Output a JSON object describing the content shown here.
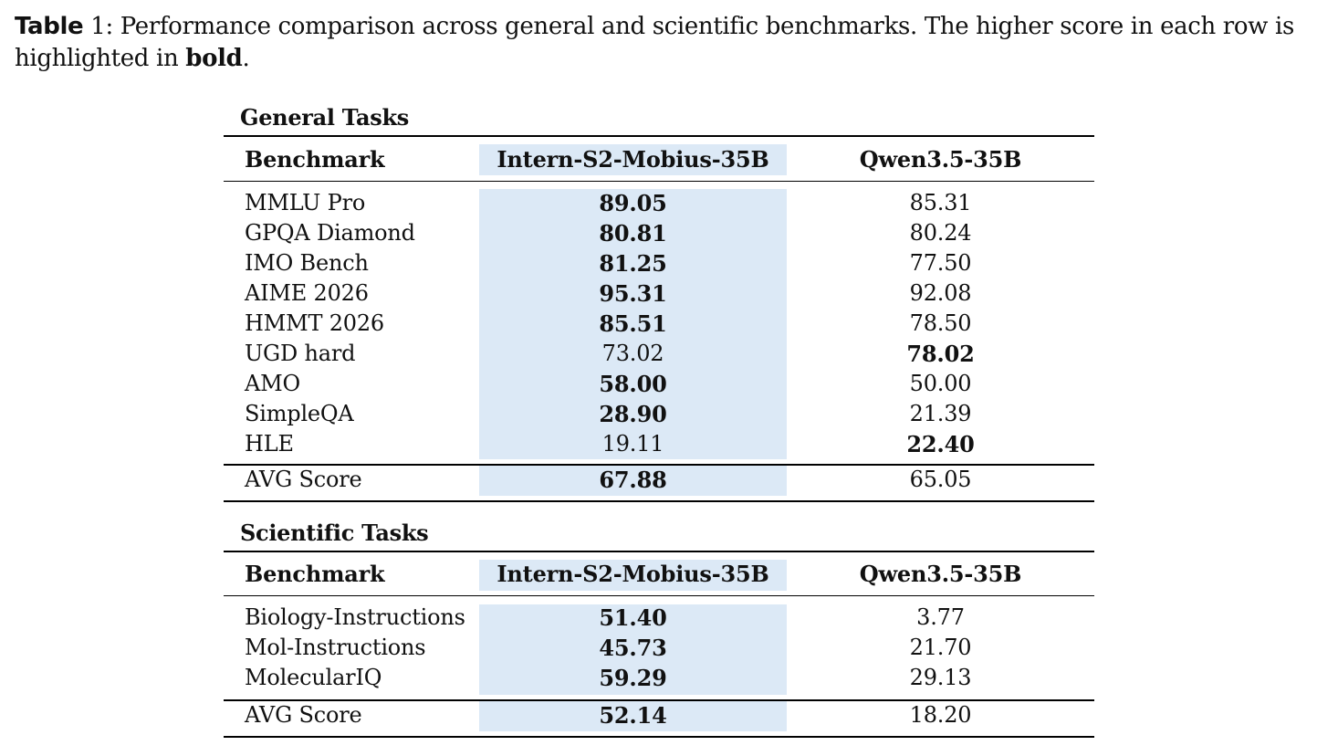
{
  "caption": {
    "label": "Table",
    "number": " 1",
    "text": ": Performance comparison across general and scientific benchmarks. The higher score in each row is highlighted in ",
    "bold_word": "bold",
    "end": "."
  },
  "sections": [
    {
      "title": "General Tasks",
      "header": [
        "Benchmark",
        "Intern-S2-Mobius-35B",
        "Qwen3.5-35B"
      ],
      "rows": [
        {
          "benchmark": "MMLU Pro",
          "intern": "89.05",
          "qwen": "85.31",
          "best": "intern"
        },
        {
          "benchmark": "GPQA Diamond",
          "intern": "80.81",
          "qwen": "80.24",
          "best": "intern"
        },
        {
          "benchmark": "IMO Bench",
          "intern": "81.25",
          "qwen": "77.50",
          "best": "intern"
        },
        {
          "benchmark": "AIME 2026",
          "intern": "95.31",
          "qwen": "92.08",
          "best": "intern"
        },
        {
          "benchmark": "HMMT 2026",
          "intern": "85.51",
          "qwen": "78.50",
          "best": "intern"
        },
        {
          "benchmark": "UGD hard",
          "intern": "73.02",
          "qwen": "78.02",
          "best": "qwen"
        },
        {
          "benchmark": "AMO",
          "intern": "58.00",
          "qwen": "50.00",
          "best": "intern"
        },
        {
          "benchmark": "SimpleQA",
          "intern": "28.90",
          "qwen": "21.39",
          "best": "intern"
        },
        {
          "benchmark": "HLE",
          "intern": "19.11",
          "qwen": "22.40",
          "best": "qwen"
        }
      ],
      "avg": {
        "benchmark": "AVG Score",
        "intern": "67.88",
        "qwen": "65.05",
        "best": "intern"
      }
    },
    {
      "title": "Scientific Tasks",
      "header": [
        "Benchmark",
        "Intern-S2-Mobius-35B",
        "Qwen3.5-35B"
      ],
      "rows": [
        {
          "benchmark": "Biology-Instructions",
          "intern": "51.40",
          "qwen": "3.77",
          "best": "intern"
        },
        {
          "benchmark": "Mol-Instructions",
          "intern": "45.73",
          "qwen": "21.70",
          "best": "intern"
        },
        {
          "benchmark": "MolecularIQ",
          "intern": "59.29",
          "qwen": "29.13",
          "best": "intern"
        }
      ],
      "avg": {
        "benchmark": "AVG Score",
        "intern": "52.14",
        "qwen": "18.20",
        "best": "intern"
      }
    }
  ],
  "colors": {
    "highlight_band": "#dce9f6",
    "text": "#111111",
    "rule": "#000000"
  }
}
